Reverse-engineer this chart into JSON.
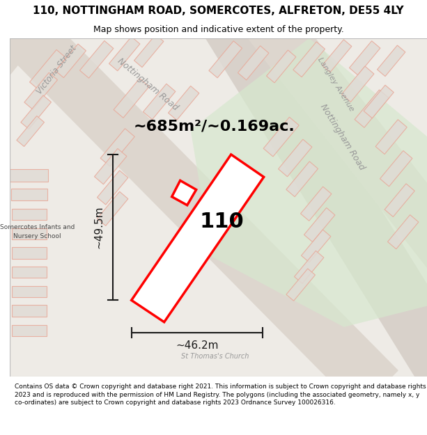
{
  "title": "110, NOTTINGHAM ROAD, SOMERCOTES, ALFRETON, DE55 4LY",
  "subtitle": "Map shows position and indicative extent of the property.",
  "footer": "Contains OS data © Crown copyright and database right 2021. This information is subject to Crown copyright and database rights 2023 and is reproduced with the permission of HM Land Registry. The polygons (including the associated geometry, namely x, y co-ordinates) are subject to Crown copyright and database rights 2023 Ordnance Survey 100026316.",
  "area_text": "~685m²/~0.169ac.",
  "width_text": "~46.2m",
  "height_text": "~49.5m",
  "plot_number": "110",
  "map_bg": "#eeebe6",
  "road_fill": "#e2dbd4",
  "green_fill": "#d6e8ce",
  "building_face": "#e0dbd5",
  "building_edge": "#e8a898",
  "plot_fill": "#ffffff",
  "plot_edge": "#ff0000",
  "dim_color": "#1a1a1a",
  "label_gray": "#999999",
  "label_dark": "#444444",
  "figure_width": 6.0,
  "figure_height": 6.25,
  "title_fontsize": 11,
  "subtitle_fontsize": 9,
  "footer_fontsize": 6.5,
  "area_fontsize": 16,
  "dim_fontsize": 11,
  "plot_label_fontsize": 22,
  "road_label_fontsize": 8.5,
  "small_label_fontsize": 6.5
}
